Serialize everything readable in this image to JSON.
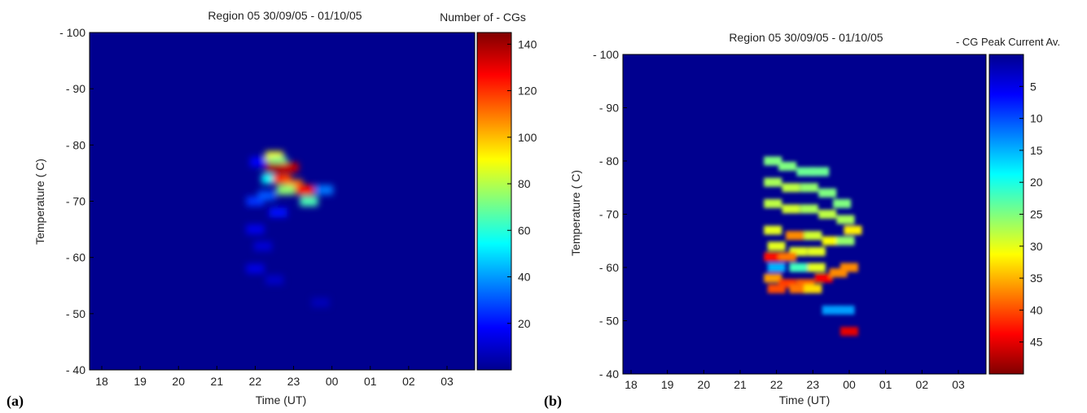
{
  "chart_data": [
    {
      "type": "heatmap",
      "panel_label": "(a)",
      "title": "Region 05 30/09/05 -  01/10/05",
      "xlabel": "Time (UT)",
      "ylabel": "Temperature ( C)",
      "x_ticks": [
        "18",
        "19",
        "20",
        "21",
        "22",
        "23",
        "00",
        "01",
        "02",
        "03"
      ],
      "y_ticks": [
        "- 100",
        "- 90",
        "- 80",
        "- 70",
        "- 60",
        "- 50",
        "- 40"
      ],
      "ylim": [
        -100,
        -40
      ],
      "colorbar": {
        "label": "Number of - CGs",
        "range": [
          0,
          145
        ],
        "ticks": [
          "20",
          "40",
          "60",
          "80",
          "100",
          "120",
          "140"
        ],
        "reversed": false
      },
      "background_value": 0,
      "cells": [
        {
          "time": "22.1",
          "temp": -77,
          "value": 18
        },
        {
          "time": "22.5",
          "temp": -78,
          "value": 90
        },
        {
          "time": "22.6",
          "temp": -77,
          "value": 70
        },
        {
          "time": "22.5",
          "temp": -76,
          "value": 140
        },
        {
          "time": "22.9",
          "temp": -76,
          "value": 135
        },
        {
          "time": "22.4",
          "temp": -74,
          "value": 55
        },
        {
          "time": "22.7",
          "temp": -74,
          "value": 120
        },
        {
          "time": "23.0",
          "temp": -73,
          "value": 110
        },
        {
          "time": "22.8",
          "temp": -72,
          "value": 75
        },
        {
          "time": "23.3",
          "temp": -72,
          "value": 125
        },
        {
          "time": "23.4",
          "temp": -70,
          "value": 65
        },
        {
          "time": "23.8",
          "temp": -72,
          "value": 35
        },
        {
          "time": "22.0",
          "temp": -70,
          "value": 25
        },
        {
          "time": "22.3",
          "temp": -71,
          "value": 30
        },
        {
          "time": "22.6",
          "temp": -68,
          "value": 20
        },
        {
          "time": "22.0",
          "temp": -65,
          "value": 15
        },
        {
          "time": "22.2",
          "temp": -62,
          "value": 12
        },
        {
          "time": "22.0",
          "temp": -58,
          "value": 14
        },
        {
          "time": "22.5",
          "temp": -56,
          "value": 10
        },
        {
          "time": "23.7",
          "temp": -52,
          "value": 8
        }
      ]
    },
    {
      "type": "heatmap",
      "panel_label": "(b)",
      "title": "Region 05 30/09/05 -  01/10/05",
      "xlabel": "Time (UT)",
      "ylabel": "Temperature ( C)",
      "x_ticks": [
        "18",
        "19",
        "20",
        "21",
        "22",
        "23",
        "00",
        "01",
        "02",
        "03"
      ],
      "y_ticks": [
        "- 100",
        "- 90",
        "- 80",
        "- 70",
        "- 60",
        "- 50",
        "- 40"
      ],
      "ylim": [
        -100,
        -40
      ],
      "colorbar": {
        "label": "- CG Peak Current Av.",
        "range": [
          0,
          50
        ],
        "ticks": [
          "5",
          "10",
          "15",
          "20",
          "25",
          "30",
          "35",
          "40",
          "45"
        ],
        "reversed": true
      },
      "background_value": 0,
      "cells": [
        {
          "time": "21.9",
          "temp": -80,
          "value": 25
        },
        {
          "time": "22.3",
          "temp": -79,
          "value": 25
        },
        {
          "time": "22.8",
          "temp": -78,
          "value": 24
        },
        {
          "time": "23.2",
          "temp": -78,
          "value": 24
        },
        {
          "time": "21.9",
          "temp": -76,
          "value": 27
        },
        {
          "time": "22.4",
          "temp": -75,
          "value": 28
        },
        {
          "time": "22.9",
          "temp": -75,
          "value": 26
        },
        {
          "time": "23.4",
          "temp": -74,
          "value": 25
        },
        {
          "time": "23.8",
          "temp": -72,
          "value": 25
        },
        {
          "time": "21.9",
          "temp": -72,
          "value": 28
        },
        {
          "time": "22.4",
          "temp": -71,
          "value": 29
        },
        {
          "time": "22.9",
          "temp": -71,
          "value": 27
        },
        {
          "time": "23.4",
          "temp": -70,
          "value": 28
        },
        {
          "time": "23.9",
          "temp": -69,
          "value": 27
        },
        {
          "time": "24.1",
          "temp": -67,
          "value": 32
        },
        {
          "time": "21.9",
          "temp": -67,
          "value": 30
        },
        {
          "time": "22.5",
          "temp": -66,
          "value": 37
        },
        {
          "time": "23.0",
          "temp": -66,
          "value": 29
        },
        {
          "time": "23.5",
          "temp": -65,
          "value": 31
        },
        {
          "time": "23.9",
          "temp": -65,
          "value": 26
        },
        {
          "time": "22.0",
          "temp": -64,
          "value": 30
        },
        {
          "time": "22.6",
          "temp": -63,
          "value": 30
        },
        {
          "time": "23.1",
          "temp": -63,
          "value": 30
        },
        {
          "time": "21.9",
          "temp": -62,
          "value": 43
        },
        {
          "time": "22.3",
          "temp": -62,
          "value": 38
        },
        {
          "time": "22.0",
          "temp": -60,
          "value": 15
        },
        {
          "time": "22.6",
          "temp": -60,
          "value": 22
        },
        {
          "time": "23.1",
          "temp": -60,
          "value": 30
        },
        {
          "time": "24.0",
          "temp": -60,
          "value": 37
        },
        {
          "time": "21.9",
          "temp": -58,
          "value": 36
        },
        {
          "time": "22.3",
          "temp": -57,
          "value": 41
        },
        {
          "time": "22.8",
          "temp": -57,
          "value": 39
        },
        {
          "time": "23.3",
          "temp": -58,
          "value": 44
        },
        {
          "time": "23.7",
          "temp": -59,
          "value": 37
        },
        {
          "time": "22.0",
          "temp": -56,
          "value": 40
        },
        {
          "time": "22.6",
          "temp": -56,
          "value": 38
        },
        {
          "time": "23.0",
          "temp": -56,
          "value": 33
        },
        {
          "time": "23.5",
          "temp": -52,
          "value": 14
        },
        {
          "time": "23.9",
          "temp": -52,
          "value": 14
        },
        {
          "time": "24.0",
          "temp": -48,
          "value": 45
        }
      ]
    }
  ]
}
